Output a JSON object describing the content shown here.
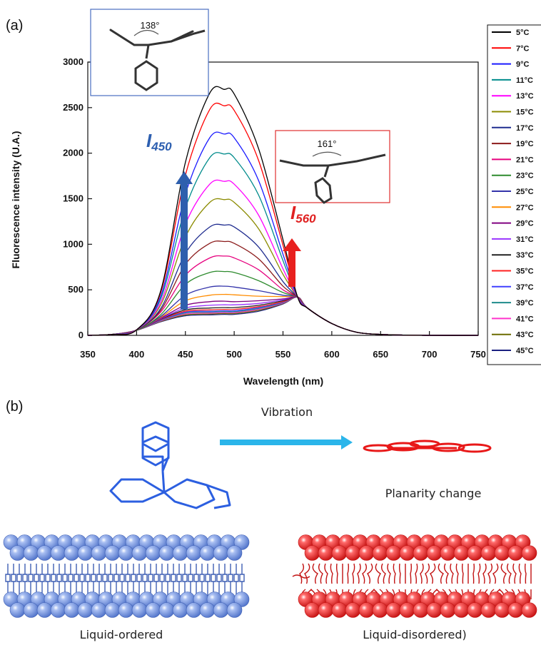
{
  "panels": {
    "a": "(a)",
    "b": "(b)"
  },
  "colors": {
    "blue_arrow": "#2e5fad",
    "red_arrow": "#e8201e",
    "annot_blue": "#2d5fb0",
    "annot_red": "#e02020",
    "membrane_blue": "#7f9ee6",
    "membrane_red": "#e82424",
    "cyan_arrow": "#2bb5ea"
  },
  "annotations": {
    "i450_letter": "I",
    "i450_sub": "450",
    "i560_letter": "I",
    "i560_sub": "560",
    "angle_top": "138°",
    "angle_mid": "161°"
  },
  "scheme": {
    "vibration": "Vibration",
    "planarity": "Planarity change",
    "ordered": "Liquid-ordered",
    "disordered": "Liquid-disordered)"
  },
  "chart_data": {
    "type": "line",
    "xlabel": "Wavelength (nm)",
    "ylabel": "Fluorescence intensity (U.A.)",
    "xlim": [
      350,
      750
    ],
    "ylim": [
      0,
      3000
    ],
    "xticks": [
      "350",
      "400",
      "450",
      "500",
      "550",
      "600",
      "650",
      "700",
      "750"
    ],
    "yticks": [
      "0",
      "500",
      "1000",
      "1500",
      "2000",
      "2500",
      "3000"
    ],
    "x": [
      350,
      375,
      400,
      425,
      450,
      475,
      490,
      500,
      525,
      550,
      565,
      575,
      600,
      625,
      650,
      675,
      700,
      750
    ],
    "legend_position": "right",
    "series": [
      {
        "name": "5°C",
        "color": "#000000",
        "values": [
          0,
          10,
          60,
          500,
          1900,
          2660,
          2700,
          2650,
          2050,
          1050,
          420,
          300,
          130,
          35,
          10,
          3,
          0,
          0
        ]
      },
      {
        "name": "7°C",
        "color": "#ff0000",
        "values": [
          0,
          10,
          60,
          480,
          1760,
          2480,
          2520,
          2470,
          1920,
          990,
          420,
          300,
          130,
          35,
          10,
          3,
          0,
          0
        ]
      },
      {
        "name": "9°C",
        "color": "#1a1aff",
        "values": [
          0,
          10,
          60,
          440,
          1550,
          2170,
          2210,
          2170,
          1700,
          890,
          420,
          300,
          130,
          35,
          10,
          3,
          0,
          0
        ]
      },
      {
        "name": "11°C",
        "color": "#008b8b",
        "values": [
          0,
          10,
          60,
          410,
          1400,
          1950,
          1990,
          1950,
          1540,
          820,
          420,
          300,
          130,
          35,
          10,
          3,
          0,
          0
        ]
      },
      {
        "name": "13°C",
        "color": "#ff00ff",
        "values": [
          0,
          10,
          60,
          370,
          1220,
          1660,
          1690,
          1660,
          1320,
          730,
          420,
          300,
          130,
          35,
          10,
          3,
          0,
          0
        ]
      },
      {
        "name": "15°C",
        "color": "#8b8b00",
        "values": [
          0,
          10,
          60,
          340,
          1080,
          1460,
          1490,
          1460,
          1170,
          670,
          420,
          300,
          130,
          35,
          10,
          3,
          0,
          0
        ]
      },
      {
        "name": "17°C",
        "color": "#1f2c8f",
        "values": [
          0,
          10,
          60,
          300,
          900,
          1190,
          1210,
          1190,
          970,
          590,
          420,
          300,
          130,
          35,
          10,
          3,
          0,
          0
        ]
      },
      {
        "name": "19°C",
        "color": "#8b1a1a",
        "values": [
          0,
          10,
          60,
          280,
          780,
          1010,
          1030,
          1010,
          840,
          540,
          420,
          300,
          130,
          35,
          10,
          3,
          0,
          0
        ]
      },
      {
        "name": "21°C",
        "color": "#e6007e",
        "values": [
          0,
          10,
          60,
          260,
          660,
          850,
          870,
          850,
          720,
          500,
          420,
          300,
          130,
          35,
          10,
          3,
          0,
          0
        ]
      },
      {
        "name": "23°C",
        "color": "#2e8b2e",
        "values": [
          0,
          10,
          55,
          230,
          560,
          690,
          700,
          690,
          600,
          470,
          420,
          300,
          130,
          35,
          10,
          3,
          0,
          0
        ]
      },
      {
        "name": "25°C",
        "color": "#3333aa",
        "values": [
          0,
          10,
          55,
          210,
          440,
          530,
          540,
          530,
          490,
          440,
          420,
          300,
          130,
          35,
          10,
          3,
          0,
          0
        ]
      },
      {
        "name": "27°C",
        "color": "#ff8c00",
        "values": [
          0,
          10,
          55,
          200,
          380,
          440,
          450,
          445,
          430,
          425,
          420,
          300,
          130,
          35,
          10,
          3,
          0,
          0
        ]
      },
      {
        "name": "29°C",
        "color": "#800080",
        "values": [
          0,
          10,
          55,
          190,
          330,
          370,
          375,
          370,
          380,
          400,
          420,
          300,
          130,
          35,
          10,
          3,
          0,
          0
        ]
      },
      {
        "name": "31°C",
        "color": "#9933ff",
        "values": [
          0,
          10,
          55,
          185,
          300,
          330,
          335,
          335,
          350,
          390,
          420,
          300,
          130,
          35,
          10,
          3,
          0,
          0
        ]
      },
      {
        "name": "33°C",
        "color": "#222222",
        "values": [
          0,
          10,
          55,
          180,
          280,
          300,
          305,
          305,
          330,
          380,
          420,
          300,
          130,
          35,
          10,
          3,
          0,
          0
        ]
      },
      {
        "name": "35°C",
        "color": "#ff2020",
        "values": [
          0,
          10,
          55,
          175,
          265,
          280,
          285,
          285,
          315,
          370,
          420,
          300,
          130,
          35,
          10,
          3,
          0,
          0
        ]
      },
      {
        "name": "37°C",
        "color": "#4040ff",
        "values": [
          0,
          10,
          55,
          170,
          255,
          265,
          270,
          270,
          305,
          365,
          420,
          300,
          130,
          35,
          10,
          3,
          0,
          0
        ]
      },
      {
        "name": "39°C",
        "color": "#1e8b8b",
        "values": [
          0,
          10,
          55,
          165,
          245,
          255,
          260,
          260,
          295,
          360,
          420,
          300,
          130,
          35,
          10,
          3,
          0,
          0
        ]
      },
      {
        "name": "41°C",
        "color": "#ff33cc",
        "values": [
          0,
          10,
          55,
          160,
          235,
          245,
          250,
          250,
          285,
          355,
          420,
          300,
          130,
          35,
          10,
          3,
          0,
          0
        ]
      },
      {
        "name": "43°C",
        "color": "#6b6b00",
        "values": [
          0,
          10,
          55,
          155,
          225,
          235,
          240,
          240,
          275,
          350,
          420,
          300,
          130,
          35,
          10,
          3,
          0,
          0
        ]
      },
      {
        "name": "45°C",
        "color": "#1a2080",
        "values": [
          0,
          10,
          55,
          150,
          215,
          225,
          230,
          230,
          265,
          345,
          420,
          300,
          130,
          35,
          10,
          3,
          0,
          0
        ]
      }
    ]
  }
}
